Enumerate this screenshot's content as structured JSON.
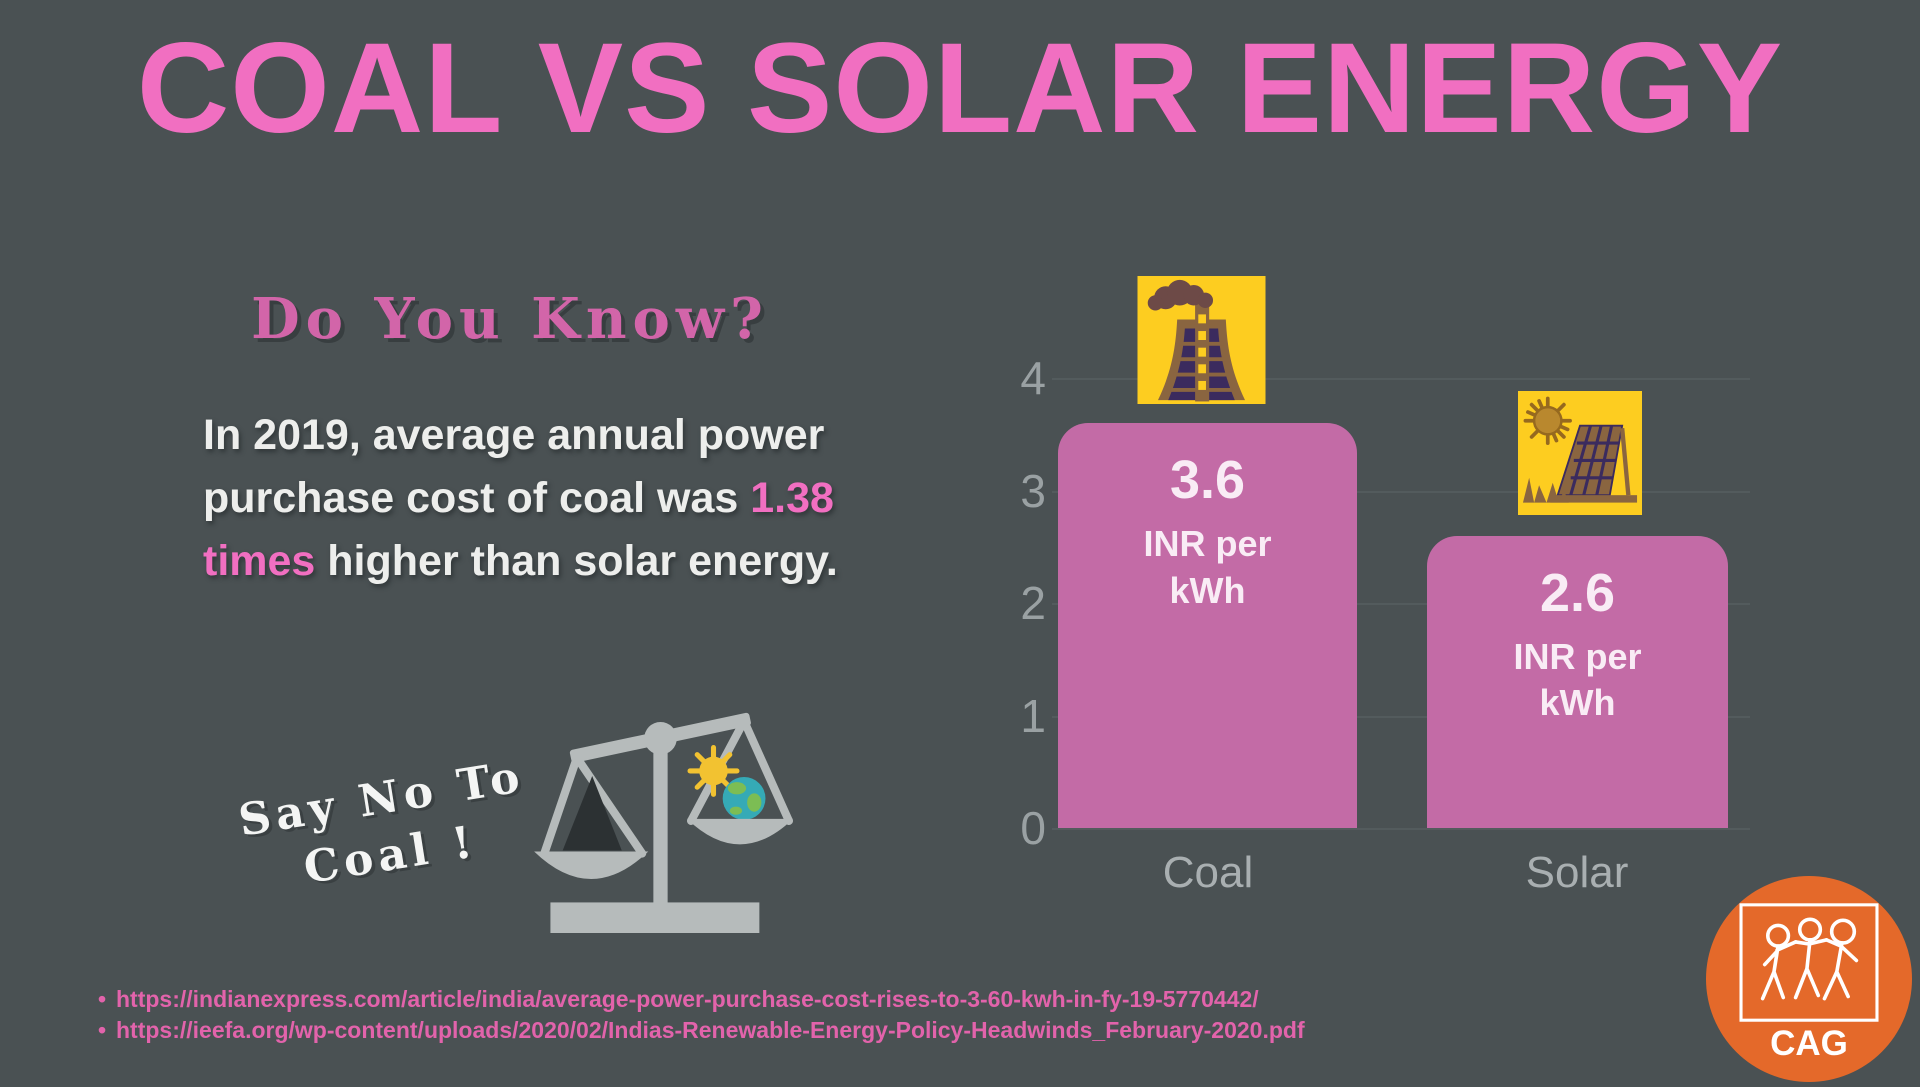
{
  "page": {
    "title": "COAL VS SOLAR ENERGY"
  },
  "colors": {
    "background": "#4a5153",
    "title_pink": "#f16fc1",
    "heading_pink": "#d265a9",
    "highlight_pink": "#f16fc1",
    "bar_fill": "#c36ba6",
    "bar_label_text": "#f9ecf5",
    "axis_text": "#9aa1a3",
    "gridline": "#5a6264",
    "body_text": "#edeeec",
    "source_pink": "#e263ab",
    "logo_orange": "#e4692a",
    "icon_yellow": "#fdcd20"
  },
  "do_you_know": {
    "heading": "Do You Know?",
    "fact": {
      "part1": "In 2019, average annual power purchase cost of coal was ",
      "highlight": "1.38 times",
      "part2": " higher than solar energy."
    }
  },
  "slogan": {
    "line1": "Say No To",
    "line2": "Coal !"
  },
  "chart_data": {
    "type": "bar",
    "categories": [
      "Coal",
      "Solar"
    ],
    "values": [
      3.6,
      2.6
    ],
    "value_labels": [
      "3.6",
      "2.6"
    ],
    "unit_lines": [
      "INR per",
      "kWh"
    ],
    "yticks": [
      0,
      1,
      2,
      3,
      4
    ],
    "ylim": [
      0,
      4
    ],
    "grid": true,
    "legend_position": "none",
    "bar_color": "#c36ba6",
    "bar_icons": [
      "coal-power-plant-icon",
      "solar-panel-icon"
    ]
  },
  "icons": {
    "coal": "coal-power-plant-icon",
    "solar": "solar-panel-icon",
    "scale": "balance-scale-icon",
    "logo": "cag-logo"
  },
  "sources": {
    "bullet": "•",
    "items": [
      "https://indianexpress.com/article/india/average-power-purchase-cost-rises-to-3-60-kwh-in-fy-19-5770442/",
      "https://ieefa.org/wp-content/uploads/2020/02/Indias-Renewable-Energy-Policy-Headwinds_February-2020.pdf"
    ]
  },
  "logo": {
    "label": "CAG"
  }
}
